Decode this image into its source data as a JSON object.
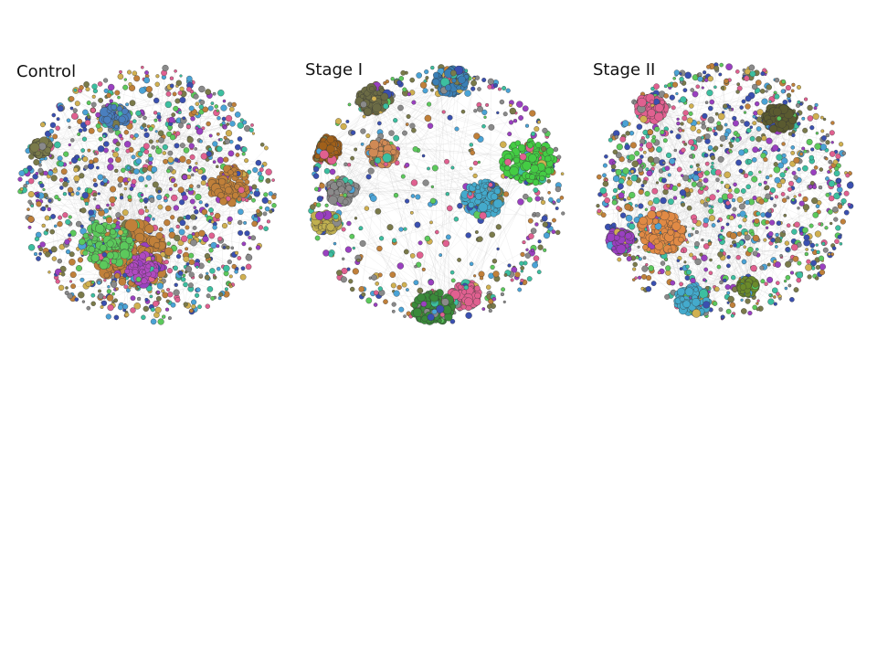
{
  "figure": {
    "panels": [
      {
        "title": "Control",
        "layout": "dense-uniform",
        "communities": [
          {
            "color": "#c0803a",
            "weight": 1.0
          },
          {
            "color": "#5cc95c",
            "weight": 0.7
          },
          {
            "color": "#b04ac0",
            "weight": 0.3
          },
          {
            "color": "#c0803a",
            "weight": 0.6
          },
          {
            "color": "#4a7fbf",
            "weight": 0.4
          },
          {
            "color": "#7a7a4a",
            "weight": 0.3
          }
        ]
      },
      {
        "title": "Stage I",
        "layout": "separated-clusters",
        "communities": [
          {
            "color": "#3a7fb5",
            "weight": 0.8
          },
          {
            "color": "#6b6b45",
            "weight": 0.6
          },
          {
            "color": "#a0601a",
            "weight": 0.8
          },
          {
            "color": "#d08a55",
            "weight": 0.5
          },
          {
            "color": "#44cc44",
            "weight": 1.0
          },
          {
            "color": "#44aacc",
            "weight": 0.9
          },
          {
            "color": "#e06090",
            "weight": 0.6
          },
          {
            "color": "#8a8a8a",
            "weight": 0.4
          },
          {
            "color": "#c0b050",
            "weight": 0.5
          },
          {
            "color": "#3a8a3a",
            "weight": 0.7
          }
        ]
      },
      {
        "title": "Stage II",
        "layout": "partially-separated",
        "communities": [
          {
            "color": "#e06090",
            "weight": 0.6
          },
          {
            "color": "#5a5a30",
            "weight": 0.6
          },
          {
            "color": "#e08a45",
            "weight": 0.9
          },
          {
            "color": "#9a40c0",
            "weight": 0.5
          },
          {
            "color": "#44aacc",
            "weight": 0.6
          },
          {
            "color": "#6b8a2a",
            "weight": 0.4
          }
        ]
      }
    ],
    "palette": [
      "#4aa3d6",
      "#5cc95c",
      "#c0803a",
      "#8a8a8a",
      "#e06090",
      "#9a40c0",
      "#3a50b0",
      "#d0b050",
      "#3cbfa0",
      "#7a7a4a"
    ]
  }
}
